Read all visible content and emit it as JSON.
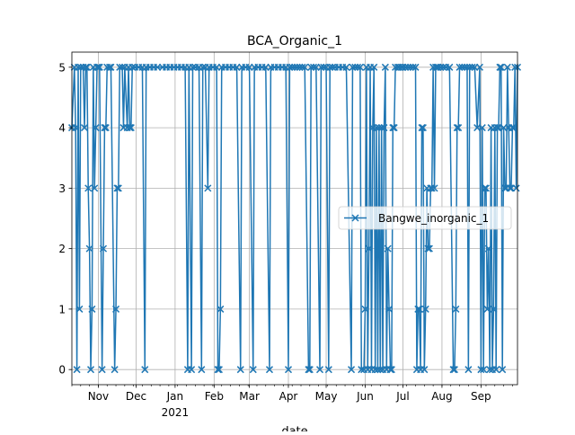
{
  "chart_data": {
    "type": "line",
    "title": "BCA_Organic_1",
    "xlabel": "date",
    "ylabel": "",
    "grid": true,
    "legend_position": "center-right",
    "marker": "x",
    "xlim": [
      "2020-10-11",
      "2021-09-30"
    ],
    "ylim": [
      -0.25,
      5.25
    ],
    "yticks": [
      0,
      1,
      2,
      3,
      4,
      5
    ],
    "xticks": [
      {
        "date": "2020-11-01",
        "label": "Nov"
      },
      {
        "date": "2020-12-01",
        "label": "Dec"
      },
      {
        "date": "2021-01-01",
        "label": "Jan",
        "sublabel": "2021"
      },
      {
        "date": "2021-02-01",
        "label": "Feb"
      },
      {
        "date": "2021-03-01",
        "label": "Mar"
      },
      {
        "date": "2021-04-01",
        "label": "Apr"
      },
      {
        "date": "2021-05-01",
        "label": "May"
      },
      {
        "date": "2021-06-01",
        "label": "Jun"
      },
      {
        "date": "2021-07-01",
        "label": "Jul"
      },
      {
        "date": "2021-08-01",
        "label": "Aug"
      },
      {
        "date": "2021-09-01",
        "label": "Sep"
      }
    ],
    "series": [
      {
        "name": "Bangwe_inorganic_1",
        "color": "#1f77b4",
        "points": [
          [
            "2020-10-11",
            4
          ],
          [
            "2020-10-13",
            5
          ],
          [
            "2020-10-14",
            4
          ],
          [
            "2020-10-15",
            0
          ],
          [
            "2020-10-16",
            5
          ],
          [
            "2020-10-17",
            1
          ],
          [
            "2020-10-18",
            5
          ],
          [
            "2020-10-20",
            5
          ],
          [
            "2020-10-21",
            4
          ],
          [
            "2020-10-22",
            5
          ],
          [
            "2020-10-23",
            5
          ],
          [
            "2020-10-24",
            3
          ],
          [
            "2020-10-25",
            2
          ],
          [
            "2020-10-26",
            0
          ],
          [
            "2020-10-27",
            1
          ],
          [
            "2020-10-28",
            5
          ],
          [
            "2020-10-29",
            3
          ],
          [
            "2020-10-30",
            4
          ],
          [
            "2020-10-31",
            5
          ],
          [
            "2020-11-01",
            5
          ],
          [
            "2020-11-02",
            5
          ],
          [
            "2020-11-04",
            0
          ],
          [
            "2020-11-05",
            2
          ],
          [
            "2020-11-06",
            4
          ],
          [
            "2020-11-07",
            4
          ],
          [
            "2020-11-08",
            5
          ],
          [
            "2020-11-10",
            5
          ],
          [
            "2020-11-11",
            5
          ],
          [
            "2020-11-14",
            0
          ],
          [
            "2020-11-15",
            1
          ],
          [
            "2020-11-16",
            3
          ],
          [
            "2020-11-17",
            3
          ],
          [
            "2020-11-18",
            5
          ],
          [
            "2020-11-20",
            5
          ],
          [
            "2020-11-21",
            4
          ],
          [
            "2020-11-22",
            5
          ],
          [
            "2020-11-24",
            4
          ],
          [
            "2020-11-25",
            5
          ],
          [
            "2020-11-26",
            4
          ],
          [
            "2020-11-27",
            4
          ],
          [
            "2020-11-28",
            5
          ],
          [
            "2020-11-30",
            5
          ],
          [
            "2020-12-03",
            5
          ],
          [
            "2020-12-06",
            5
          ],
          [
            "2020-12-08",
            0
          ],
          [
            "2020-12-09",
            5
          ],
          [
            "2020-12-12",
            5
          ],
          [
            "2020-12-15",
            5
          ],
          [
            "2020-12-18",
            5
          ],
          [
            "2020-12-22",
            5
          ],
          [
            "2020-12-25",
            5
          ],
          [
            "2020-12-28",
            5
          ],
          [
            "2020-12-31",
            5
          ],
          [
            "2021-01-03",
            5
          ],
          [
            "2021-01-06",
            5
          ],
          [
            "2021-01-09",
            5
          ],
          [
            "2021-01-11",
            0
          ],
          [
            "2021-01-12",
            5
          ],
          [
            "2021-01-14",
            0
          ],
          [
            "2021-01-15",
            5
          ],
          [
            "2021-01-17",
            5
          ],
          [
            "2021-01-20",
            5
          ],
          [
            "2021-01-22",
            0
          ],
          [
            "2021-01-23",
            5
          ],
          [
            "2021-01-25",
            5
          ],
          [
            "2021-01-27",
            3
          ],
          [
            "2021-01-28",
            5
          ],
          [
            "2021-01-31",
            5
          ],
          [
            "2021-02-03",
            5
          ],
          [
            "2021-02-04",
            0
          ],
          [
            "2021-02-05",
            0
          ],
          [
            "2021-02-06",
            1
          ],
          [
            "2021-02-07",
            5
          ],
          [
            "2021-02-10",
            5
          ],
          [
            "2021-02-13",
            5
          ],
          [
            "2021-02-16",
            5
          ],
          [
            "2021-02-19",
            5
          ],
          [
            "2021-02-22",
            0
          ],
          [
            "2021-02-23",
            5
          ],
          [
            "2021-02-26",
            5
          ],
          [
            "2021-03-01",
            5
          ],
          [
            "2021-03-04",
            0
          ],
          [
            "2021-03-05",
            5
          ],
          [
            "2021-03-08",
            5
          ],
          [
            "2021-03-11",
            5
          ],
          [
            "2021-03-14",
            5
          ],
          [
            "2021-03-17",
            0
          ],
          [
            "2021-03-18",
            5
          ],
          [
            "2021-03-21",
            5
          ],
          [
            "2021-03-24",
            5
          ],
          [
            "2021-03-27",
            5
          ],
          [
            "2021-03-30",
            5
          ],
          [
            "2021-04-01",
            0
          ],
          [
            "2021-04-02",
            5
          ],
          [
            "2021-04-04",
            5
          ],
          [
            "2021-04-06",
            5
          ],
          [
            "2021-04-08",
            5
          ],
          [
            "2021-04-10",
            5
          ],
          [
            "2021-04-12",
            5
          ],
          [
            "2021-04-14",
            5
          ],
          [
            "2021-04-17",
            0
          ],
          [
            "2021-04-18",
            0
          ],
          [
            "2021-04-19",
            5
          ],
          [
            "2021-04-21",
            5
          ],
          [
            "2021-04-23",
            5
          ],
          [
            "2021-04-26",
            0
          ],
          [
            "2021-04-27",
            5
          ],
          [
            "2021-04-29",
            5
          ],
          [
            "2021-05-01",
            5
          ],
          [
            "2021-05-03",
            0
          ],
          [
            "2021-05-04",
            5
          ],
          [
            "2021-05-06",
            5
          ],
          [
            "2021-05-08",
            5
          ],
          [
            "2021-05-11",
            5
          ],
          [
            "2021-05-14",
            5
          ],
          [
            "2021-05-17",
            5
          ],
          [
            "2021-05-21",
            0
          ],
          [
            "2021-05-22",
            5
          ],
          [
            "2021-05-24",
            5
          ],
          [
            "2021-05-26",
            5
          ],
          [
            "2021-05-28",
            5
          ],
          [
            "2021-05-29",
            0
          ],
          [
            "2021-05-31",
            0
          ],
          [
            "2021-06-01",
            1
          ],
          [
            "2021-06-02",
            5
          ],
          [
            "2021-06-03",
            0
          ],
          [
            "2021-06-04",
            2
          ],
          [
            "2021-06-05",
            5
          ],
          [
            "2021-06-06",
            0
          ],
          [
            "2021-06-07",
            4
          ],
          [
            "2021-06-08",
            5
          ],
          [
            "2021-06-09",
            0
          ],
          [
            "2021-06-10",
            4
          ],
          [
            "2021-06-11",
            0
          ],
          [
            "2021-06-12",
            4
          ],
          [
            "2021-06-13",
            0
          ],
          [
            "2021-06-14",
            4
          ],
          [
            "2021-06-15",
            0
          ],
          [
            "2021-06-16",
            4
          ],
          [
            "2021-06-17",
            5
          ],
          [
            "2021-06-18",
            0
          ],
          [
            "2021-06-19",
            2
          ],
          [
            "2021-06-20",
            1
          ],
          [
            "2021-06-21",
            0
          ],
          [
            "2021-06-22",
            0
          ],
          [
            "2021-06-23",
            4
          ],
          [
            "2021-06-24",
            4
          ],
          [
            "2021-06-25",
            5
          ],
          [
            "2021-06-27",
            5
          ],
          [
            "2021-06-28",
            5
          ],
          [
            "2021-06-30",
            5
          ],
          [
            "2021-07-01",
            5
          ],
          [
            "2021-07-03",
            5
          ],
          [
            "2021-07-05",
            5
          ],
          [
            "2021-07-07",
            5
          ],
          [
            "2021-07-09",
            5
          ],
          [
            "2021-07-11",
            5
          ],
          [
            "2021-07-12",
            0
          ],
          [
            "2021-07-13",
            1
          ],
          [
            "2021-07-14",
            1
          ],
          [
            "2021-07-15",
            0
          ],
          [
            "2021-07-16",
            4
          ],
          [
            "2021-07-17",
            4
          ],
          [
            "2021-07-18",
            0
          ],
          [
            "2021-07-19",
            1
          ],
          [
            "2021-07-20",
            3
          ],
          [
            "2021-07-21",
            2
          ],
          [
            "2021-07-22",
            2
          ],
          [
            "2021-07-23",
            3
          ],
          [
            "2021-07-24",
            3
          ],
          [
            "2021-07-25",
            5
          ],
          [
            "2021-07-26",
            3
          ],
          [
            "2021-07-27",
            5
          ],
          [
            "2021-07-28",
            5
          ],
          [
            "2021-07-29",
            5
          ],
          [
            "2021-07-31",
            5
          ],
          [
            "2021-08-02",
            5
          ],
          [
            "2021-08-04",
            5
          ],
          [
            "2021-08-07",
            5
          ],
          [
            "2021-08-10",
            0
          ],
          [
            "2021-08-11",
            0
          ],
          [
            "2021-08-12",
            1
          ],
          [
            "2021-08-13",
            4
          ],
          [
            "2021-08-14",
            4
          ],
          [
            "2021-08-15",
            5
          ],
          [
            "2021-08-17",
            5
          ],
          [
            "2021-08-19",
            5
          ],
          [
            "2021-08-21",
            5
          ],
          [
            "2021-08-22",
            0
          ],
          [
            "2021-08-23",
            5
          ],
          [
            "2021-08-25",
            5
          ],
          [
            "2021-08-27",
            5
          ],
          [
            "2021-08-29",
            4
          ],
          [
            "2021-08-31",
            5
          ],
          [
            "2021-09-01",
            0
          ],
          [
            "2021-09-02",
            4
          ],
          [
            "2021-09-03",
            0
          ],
          [
            "2021-09-04",
            3
          ],
          [
            "2021-09-05",
            3
          ],
          [
            "2021-09-06",
            1
          ],
          [
            "2021-09-07",
            2
          ],
          [
            "2021-09-08",
            0
          ],
          [
            "2021-09-09",
            4
          ],
          [
            "2021-09-10",
            0
          ],
          [
            "2021-09-11",
            1
          ],
          [
            "2021-09-12",
            4
          ],
          [
            "2021-09-13",
            0
          ],
          [
            "2021-09-14",
            4
          ],
          [
            "2021-09-15",
            4
          ],
          [
            "2021-09-16",
            5
          ],
          [
            "2021-09-17",
            5
          ],
          [
            "2021-09-18",
            0
          ],
          [
            "2021-09-19",
            4
          ],
          [
            "2021-09-20",
            3
          ],
          [
            "2021-09-21",
            3
          ],
          [
            "2021-09-22",
            5
          ],
          [
            "2021-09-23",
            4
          ],
          [
            "2021-09-24",
            3
          ],
          [
            "2021-09-25",
            3
          ],
          [
            "2021-09-26",
            4
          ],
          [
            "2021-09-27",
            4
          ],
          [
            "2021-09-28",
            5
          ],
          [
            "2021-09-29",
            3
          ],
          [
            "2021-09-30",
            5
          ]
        ]
      }
    ]
  }
}
